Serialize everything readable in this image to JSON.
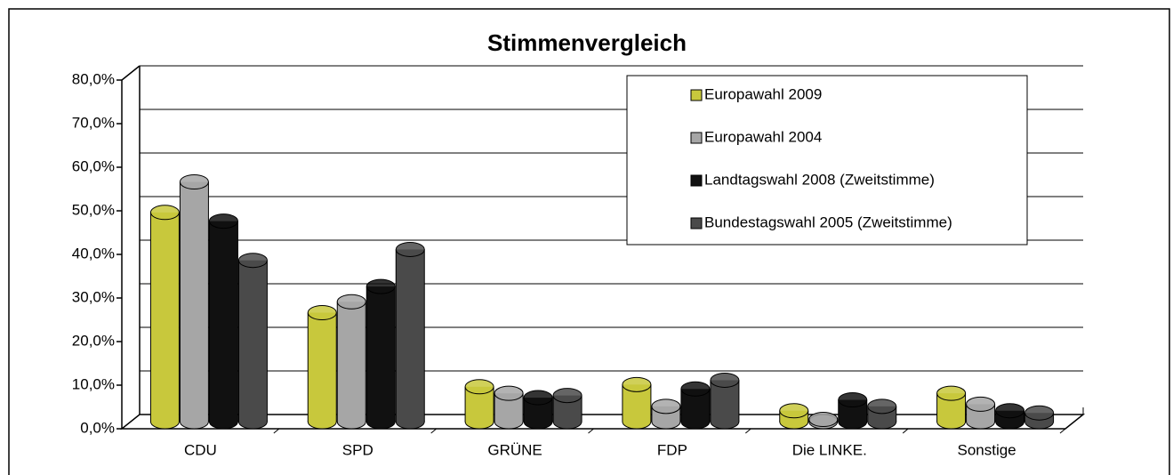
{
  "chart_data": {
    "type": "bar3d",
    "title": "Stimmenvergleich",
    "categories": [
      "CDU",
      "SPD",
      "GRÜNE",
      "FDP",
      "Die LINKE.",
      "Sonstige"
    ],
    "series": [
      {
        "name": "Europawahl 2009",
        "color": "#c8c83c",
        "values": [
          48,
          25,
          8,
          8.5,
          2.5,
          6.5
        ]
      },
      {
        "name": "Europawahl 2004",
        "color": "#a6a6a6",
        "values": [
          55,
          27.5,
          6.5,
          3.5,
          0.5,
          4
        ]
      },
      {
        "name": "Landtagswahl 2008 (Zweitstimme)",
        "color": "#111111",
        "values": [
          46,
          31,
          5.5,
          7.5,
          5,
          2.5
        ]
      },
      {
        "name": "Bundestagswahl 2005 (Zweitstimme)",
        "color": "#4a4a4a",
        "values": [
          37,
          39.5,
          6,
          9.5,
          3.5,
          2
        ]
      }
    ],
    "ylim": [
      0,
      80
    ],
    "yticks": [
      {
        "value": 0,
        "label": "0,0%"
      },
      {
        "value": 10,
        "label": "10,0%"
      },
      {
        "value": 20,
        "label": "20,0%"
      },
      {
        "value": 30,
        "label": "30,0%"
      },
      {
        "value": 40,
        "label": "40,0%"
      },
      {
        "value": 50,
        "label": "50,0%"
      },
      {
        "value": 60,
        "label": "60,0%"
      },
      {
        "value": 70,
        "label": "70,0%"
      },
      {
        "value": 80,
        "label": "80,0%"
      }
    ],
    "grid": true,
    "legend": "upper right"
  }
}
